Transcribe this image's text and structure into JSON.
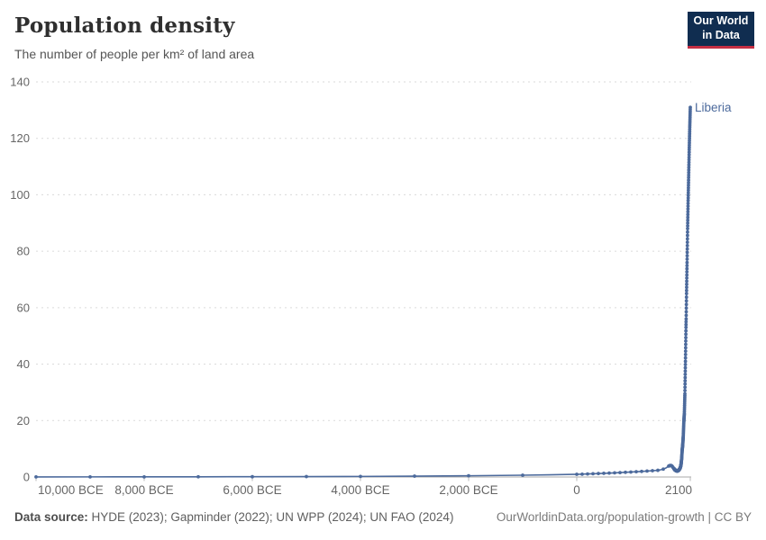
{
  "header": {
    "title": "Population density",
    "subtitle": "The number of people per km² of land area"
  },
  "logo": {
    "line1": "Our World",
    "line2": "in Data",
    "bg_color": "#102d50",
    "accent_color": "#c52e43"
  },
  "footer": {
    "source_label": "Data source:",
    "source_text": " HYDE (2023); Gapminder (2022); UN WPP (2024); UN FAO (2024)",
    "attribution": "OurWorldinData.org/population-growth | CC BY"
  },
  "chart_data": {
    "type": "line",
    "title": "Population density",
    "subtitle": "The number of people per km² of land area",
    "xlabel": "",
    "ylabel": "",
    "xlim": [
      -10000,
      2100
    ],
    "ylim": [
      0,
      140
    ],
    "grid": "horizontal-dashed",
    "legend_position": "end-of-line-label",
    "y_ticks": [
      0,
      20,
      40,
      60,
      80,
      100,
      120,
      140
    ],
    "x_ticks": [
      {
        "year": -10000,
        "label": "10,000 BCE",
        "align": "start"
      },
      {
        "year": -8000,
        "label": "8,000 BCE",
        "align": "middle"
      },
      {
        "year": -6000,
        "label": "6,000 BCE",
        "align": "middle"
      },
      {
        "year": -4000,
        "label": "4,000 BCE",
        "align": "middle"
      },
      {
        "year": -2000,
        "label": "2,000 BCE",
        "align": "middle"
      },
      {
        "year": 0,
        "label": "0",
        "align": "middle"
      },
      {
        "year": 2100,
        "label": "2100",
        "align": "end"
      }
    ],
    "series": [
      {
        "name": "Liberia",
        "end_label": "Liberia",
        "color": "#4c6a9c",
        "points": [
          [
            -10000,
            0.03
          ],
          [
            -9000,
            0.04
          ],
          [
            -8000,
            0.05
          ],
          [
            -7000,
            0.07
          ],
          [
            -6000,
            0.1
          ],
          [
            -5000,
            0.14
          ],
          [
            -4000,
            0.2
          ],
          [
            -3000,
            0.3
          ],
          [
            -2000,
            0.44
          ],
          [
            -1000,
            0.64
          ],
          [
            -500,
            0.78
          ],
          [
            0,
            0.95
          ],
          [
            100,
            1.0
          ],
          [
            200,
            1.08
          ],
          [
            300,
            1.15
          ],
          [
            400,
            1.22
          ],
          [
            500,
            1.3
          ],
          [
            600,
            1.38
          ],
          [
            700,
            1.47
          ],
          [
            800,
            1.56
          ],
          [
            900,
            1.66
          ],
          [
            1000,
            1.76
          ],
          [
            1100,
            1.87
          ],
          [
            1200,
            1.98
          ],
          [
            1300,
            2.1
          ],
          [
            1400,
            2.23
          ],
          [
            1500,
            2.37
          ],
          [
            1550,
            2.55
          ],
          [
            1600,
            2.8
          ],
          [
            1650,
            3.2
          ],
          [
            1700,
            3.85
          ],
          [
            1720,
            4.05
          ],
          [
            1740,
            4.1
          ],
          [
            1760,
            3.9
          ],
          [
            1780,
            3.4
          ],
          [
            1800,
            2.9
          ],
          [
            1820,
            2.45
          ],
          [
            1840,
            2.2
          ],
          [
            1860,
            2.1
          ],
          [
            1880,
            2.3
          ],
          [
            1900,
            2.75
          ],
          [
            1910,
            3.1
          ],
          [
            1920,
            3.6
          ],
          [
            1930,
            4.6
          ],
          [
            1940,
            6.5
          ],
          [
            1950,
            9.5
          ],
          [
            1960,
            11.5
          ],
          [
            1970,
            14.4
          ],
          [
            1980,
            19.5
          ],
          [
            1990,
            22.5
          ],
          [
            2000,
            29.5
          ],
          [
            2010,
            41
          ],
          [
            2020,
            53
          ],
          [
            2023,
            56
          ],
          [
            2030,
            65
          ],
          [
            2040,
            76
          ],
          [
            2050,
            88
          ],
          [
            2060,
            98
          ],
          [
            2070,
            107
          ],
          [
            2080,
            116
          ],
          [
            2090,
            124
          ],
          [
            2100,
            131
          ]
        ]
      }
    ]
  }
}
